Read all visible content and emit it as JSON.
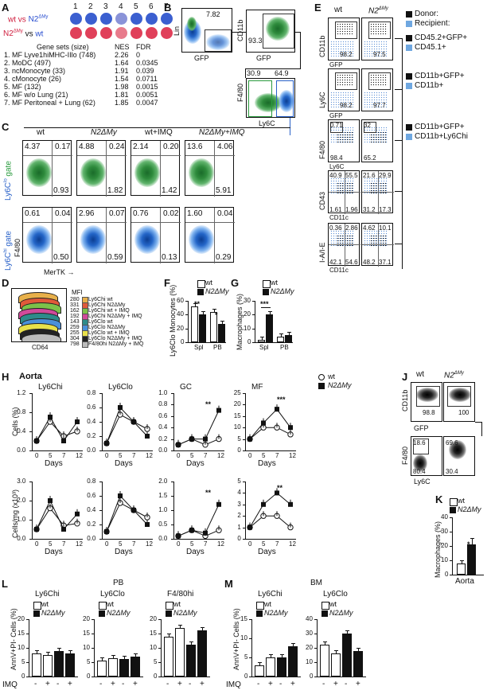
{
  "panel_letters": {
    "a": "A",
    "b": "B",
    "c": "C",
    "d": "D",
    "e": "E",
    "f": "F",
    "g": "G",
    "h": "H",
    "j": "J",
    "k": "K",
    "l": "L",
    "m": "M"
  },
  "panelA": {
    "col_numbers": [
      "1",
      "2",
      "3",
      "4",
      "5",
      "6",
      "7"
    ],
    "row1_label": "wt vs N2ΔMy",
    "row2_label": "N2ΔMy vs wt",
    "row1_colors": [
      "#3b5fd0",
      "#3b5fd0",
      "#3b5fd0",
      "#8a93d8",
      "#3b5fd0",
      "#3b5fd0",
      "#3b5fd0"
    ],
    "row2_colors": [
      "#e0405a",
      "#e0405a",
      "#e0405a",
      "#e87b8c",
      "#e0405a",
      "#e0405a",
      "#e0405a"
    ],
    "header": {
      "gene_sets": "Gene sets (size)",
      "nes": "NES",
      "fdr": "FDR"
    },
    "rows": [
      {
        "name": "1. MF Lyve1hiMHC-IIlo (748)",
        "nes": "2.26",
        "fdr": "0"
      },
      {
        "name": "2. MoDC (497)",
        "nes": "1.64",
        "fdr": "0.0345"
      },
      {
        "name": "3. ncMonocyte (33)",
        "nes": "1.91",
        "fdr": "0.039"
      },
      {
        "name": "4. cMonocyte (26)",
        "nes": "1.54",
        "fdr": "0.0711"
      },
      {
        "name": "5. MF (132)",
        "nes": "1.98",
        "fdr": "0.0015"
      },
      {
        "name": "6. MF w/o Lung (21)",
        "nes": "1.81",
        "fdr": "0.0051"
      },
      {
        "name": "7. MF Peritoneal + Lung (62)",
        "nes": "1.85",
        "fdr": "0.0047"
      }
    ]
  },
  "panelB": {
    "lin": "Lin",
    "gfp": "GFP",
    "cd11b": "CD11b",
    "f480": "F4/80",
    "ly6c": "Ly6C",
    "v1": "7.82",
    "v2": "93.3",
    "v3": "30.9",
    "v4": "64.9"
  },
  "panelC": {
    "cols": [
      "wt",
      "N2ΔMy",
      "wt+IMQ",
      "N2ΔMy+IMQ"
    ],
    "row1_label": "Ly6Clo gate",
    "row2_label": "Ly6Chi gate",
    "xlabel": "MerTK",
    "ylabel": "F4/80",
    "row1": [
      [
        "4.37",
        "0.17",
        "0.93"
      ],
      [
        "4.88",
        "0.24",
        "1.82"
      ],
      [
        "2.14",
        "0.20",
        "1.42"
      ],
      [
        "13.6",
        "4.06",
        "5.91"
      ]
    ],
    "row2": [
      [
        "0.61",
        "0.04",
        "0.50"
      ],
      [
        "2.96",
        "0.07",
        "0.59"
      ],
      [
        "0.76",
        "0.02",
        "0.13"
      ],
      [
        "1.60",
        "0.04",
        "0.29"
      ]
    ]
  },
  "panelD": {
    "mfi_header": "MFI",
    "xlabel": "CD64",
    "items": [
      {
        "mfi": "280",
        "label": "Ly6Chi wt",
        "color": "#e8b04a"
      },
      {
        "mfi": "331",
        "label": "Ly6Chi N2ΔMy",
        "color": "#e05a3a"
      },
      {
        "mfi": "162",
        "label": "Ly6Chi wt + IMQ",
        "color": "#7cc24a"
      },
      {
        "mfi": "192",
        "label": "Ly6Chi N2ΔMy + IMQ",
        "color": "#d04a9a"
      },
      {
        "mfi": "143",
        "label": "Ly6Clo wt",
        "color": "#2e8b8b"
      },
      {
        "mfi": "259",
        "label": "Ly6Clo N2ΔMy",
        "color": "#4a90d9"
      },
      {
        "mfi": "255",
        "label": "Ly6Clo wt + IMQ",
        "color": "#e8e04a"
      },
      {
        "mfi": "304",
        "label": "Ly6Clo N2ΔMy + IMQ",
        "color": "#222222"
      },
      {
        "mfi": "798",
        "label": "F4/80hi N2ΔMy + IMQ",
        "color": "#bbbbbb"
      }
    ]
  },
  "panelE": {
    "cols": [
      "wt",
      "N2ΔMy"
    ],
    "legend_top": [
      {
        "label": "Donor:",
        "color": "#111111"
      },
      {
        "label": "Recipient:",
        "color": "#6fa7e0"
      }
    ],
    "gates": [
      {
        "black": "CD45.2+GFP+",
        "blue": "CD45.1+"
      },
      {
        "black": "CD11b+GFP+",
        "blue": "CD11b+"
      },
      {
        "black": "CD11b+GFP+",
        "blue": "CD11b+Ly6Chi"
      }
    ],
    "row1": {
      "x": "GFP",
      "y": "CD11b",
      "wt": "98.2",
      "mut": "97.5"
    },
    "row2": {
      "x": "GFP",
      "y": "Ly6C",
      "wt": "98.2",
      "mut": "97.7"
    },
    "row3": {
      "x": "Ly6C",
      "y": "F4/80",
      "wt": [
        "0.71",
        "98.4"
      ],
      "mut": [
        "32",
        "65.2"
      ]
    },
    "row4": {
      "x": "CD11c",
      "y": "CD43",
      "wt": [
        "40.9",
        "55.5",
        "1.61",
        "1.96"
      ],
      "mut": [
        "21.6",
        "29.9",
        "31.2",
        "17.3"
      ]
    },
    "row5": {
      "x": "CD11c",
      "y": "I-A/I-E",
      "wt": [
        "0.36",
        "2.86",
        "42.1",
        "54.6"
      ],
      "mut": [
        "4.62",
        "10.1",
        "48.2",
        "37.1"
      ]
    }
  },
  "chart_data": [
    {
      "type": "bar",
      "title": "",
      "ylabel": "Ly6Clo Monocytes (%)",
      "categories": [
        "Spl",
        "PB"
      ],
      "ylim": [
        0,
        60
      ],
      "series": [
        {
          "name": "wt",
          "values": [
            52,
            44
          ]
        },
        {
          "name": "N2ΔMy",
          "values": [
            40,
            26
          ]
        }
      ],
      "annotations": [
        "**",
        "*"
      ]
    },
    {
      "type": "bar",
      "title": "",
      "ylabel": "Macrophages (%)",
      "categories": [
        "Spl",
        "PB"
      ],
      "ylim": [
        0,
        30
      ],
      "series": [
        {
          "name": "wt",
          "values": [
            2,
            4
          ]
        },
        {
          "name": "N2ΔMy",
          "values": [
            20,
            5
          ]
        }
      ],
      "annotations": [
        "***"
      ]
    },
    {
      "type": "line",
      "title": "Ly6Chi",
      "ylabel": "Cells (%)",
      "xlabel": "Days",
      "x": [
        0,
        5,
        7,
        12
      ],
      "ylim": [
        0,
        1.2
      ],
      "series": [
        {
          "name": "wt",
          "values": [
            0.2,
            0.6,
            0.3,
            0.4
          ]
        },
        {
          "name": "N2ΔMy",
          "values": [
            0.2,
            0.7,
            0.2,
            0.6
          ]
        }
      ]
    },
    {
      "type": "line",
      "title": "Ly6Clo",
      "ylabel": "",
      "xlabel": "Days",
      "x": [
        0,
        5,
        7,
        12
      ],
      "ylim": [
        0,
        0.8
      ],
      "series": [
        {
          "name": "wt",
          "values": [
            0.1,
            0.5,
            0.4,
            0.3
          ]
        },
        {
          "name": "N2ΔMy",
          "values": [
            0.1,
            0.6,
            0.4,
            0.2
          ]
        }
      ]
    },
    {
      "type": "line",
      "title": "GC",
      "ylabel": "",
      "xlabel": "Days",
      "x": [
        0,
        5,
        7,
        12
      ],
      "ylim": [
        0,
        1.0
      ],
      "series": [
        {
          "name": "wt",
          "values": [
            0.1,
            0.2,
            0.1,
            0.2
          ]
        },
        {
          "name": "N2ΔMy",
          "values": [
            0.1,
            0.2,
            0.2,
            0.7
          ]
        }
      ],
      "annotations": [
        "**"
      ]
    },
    {
      "type": "line",
      "title": "MF",
      "ylabel": "",
      "xlabel": "Days",
      "x": [
        0,
        5,
        7,
        12
      ],
      "ylim": [
        0,
        25
      ],
      "series": [
        {
          "name": "wt",
          "values": [
            5,
            10,
            10,
            7
          ]
        },
        {
          "name": "N2ΔMy",
          "values": [
            5,
            12,
            18,
            10
          ]
        }
      ],
      "annotations": [
        "***"
      ]
    },
    {
      "type": "line",
      "title": "",
      "ylabel": "Cells/mg (x10³)",
      "xlabel": "Days",
      "x": [
        0,
        5,
        7,
        12
      ],
      "ylim": [
        0,
        3.0
      ],
      "series": [
        {
          "name": "wt",
          "values": [
            0.5,
            1.6,
            0.7,
            0.8
          ]
        },
        {
          "name": "N2ΔMy",
          "values": [
            0.5,
            2.0,
            0.5,
            1.3
          ]
        }
      ]
    },
    {
      "type": "line",
      "title": "",
      "ylabel": "",
      "xlabel": "Days",
      "x": [
        0,
        5,
        7,
        12
      ],
      "ylim": [
        0,
        0.8
      ],
      "series": [
        {
          "name": "wt",
          "values": [
            0.1,
            0.5,
            0.4,
            0.3
          ]
        },
        {
          "name": "N2ΔMy",
          "values": [
            0.1,
            0.6,
            0.4,
            0.2
          ]
        }
      ]
    },
    {
      "type": "line",
      "title": "",
      "ylabel": "",
      "xlabel": "Days",
      "x": [
        0,
        5,
        7,
        12
      ],
      "ylim": [
        0,
        2.0
      ],
      "series": [
        {
          "name": "wt",
          "values": [
            0.1,
            0.3,
            0.1,
            0.3
          ]
        },
        {
          "name": "N2ΔMy",
          "values": [
            0.1,
            0.3,
            0.2,
            1.2
          ]
        }
      ],
      "annotations": [
        "**"
      ]
    },
    {
      "type": "line",
      "title": "",
      "ylabel": "",
      "xlabel": "Days",
      "x": [
        0,
        5,
        7,
        12
      ],
      "ylim": [
        0,
        5
      ],
      "series": [
        {
          "name": "wt",
          "values": [
            1,
            2,
            2,
            1
          ]
        },
        {
          "name": "N2ΔMy",
          "values": [
            1,
            3,
            4,
            3
          ]
        }
      ],
      "annotations": [
        "**"
      ]
    },
    {
      "type": "bar",
      "title": "Aorta",
      "ylabel": "Macrophages (%)",
      "categories": [
        "Aorta"
      ],
      "ylim": [
        0,
        40
      ],
      "series": [
        {
          "name": "wt",
          "values": [
            8
          ]
        },
        {
          "name": "N2ΔMy",
          "values": [
            21
          ]
        }
      ],
      "annotations": [
        "*"
      ]
    },
    {
      "type": "bar",
      "title": "PB",
      "ylabel": "AnnV+PI- Cells (%)",
      "categories": [
        "Ly6Chi",
        "Ly6Clo",
        "F4/80hi"
      ],
      "ylim": [
        0,
        20
      ],
      "groups": [
        "Ly6Chi",
        "Ly6Clo",
        "F4/80hi"
      ],
      "IMQ": [
        "-",
        "+",
        "-",
        "+"
      ],
      "series": [
        {
          "name": "wt",
          "values": [
            [
              8,
              7.5
            ],
            [
              5.5,
              6.5
            ],
            [
              14,
              17
            ]
          ]
        },
        {
          "name": "N2ΔMy",
          "values": [
            [
              9,
              8
            ],
            [
              6,
              7
            ],
            [
              11,
              16
            ]
          ]
        }
      ]
    },
    {
      "type": "bar",
      "title": "BM",
      "ylabel": "AnnV+PI- Cells (%)",
      "categories": [
        "Ly6Chi",
        "Ly6Clo"
      ],
      "ylim": [
        0,
        40
      ],
      "IMQ": [
        "-",
        "+",
        "-",
        "+"
      ],
      "series": [
        {
          "name": "wt",
          "values": [
            [
              3,
              5
            ],
            [
              22,
              16
            ]
          ]
        },
        {
          "name": "N2ΔMy",
          "values": [
            [
              5,
              8
            ],
            [
              30,
              18
            ]
          ]
        }
      ]
    }
  ],
  "panelF": {
    "ylabel": "Ly6Clo Monocytes (%)",
    "legend": [
      "wt",
      "N2ΔMy"
    ],
    "cats": [
      "Spl",
      "PB"
    ],
    "ticks": [
      "0",
      "20",
      "40",
      "60"
    ],
    "sig1": "**",
    "sig2": "*"
  },
  "panelG": {
    "ylabel": "Macrophages (%)",
    "legend": [
      "wt",
      "N2ΔMy"
    ],
    "cats": [
      "Spl",
      "PB"
    ],
    "ticks": [
      "0",
      "10",
      "20",
      "30"
    ],
    "sig": "***"
  },
  "panelH": {
    "title": "Aorta",
    "legend": [
      "wt",
      "N2ΔMy"
    ],
    "titles": [
      "Ly6Chi",
      "Ly6Clo",
      "GC",
      "MF"
    ],
    "ylabel_top": "Cells (%)",
    "ylabel_bot": "Cells/mg (x10³)",
    "xlabel": "Days",
    "xticks": [
      "0",
      "5",
      "7",
      "12"
    ],
    "yticks": [
      [
        "0.0",
        "0.4",
        "0.8",
        "1.2"
      ],
      [
        "0.0",
        "0.2",
        "0.4",
        "0.6",
        "0.8"
      ],
      [
        "0.0",
        "0.2",
        "0.4",
        "0.6",
        "0.8",
        "1.0"
      ],
      [
        "0",
        "5",
        "10",
        "15",
        "20",
        "25"
      ],
      [
        "0.0",
        "1.0",
        "2.0",
        "3.0"
      ],
      [
        "0.0",
        "0.2",
        "0.4",
        "0.6",
        "0.8"
      ],
      [
        "0.0",
        "0.5",
        "1.0",
        "1.5",
        "2.0"
      ],
      [
        "0",
        "1",
        "2",
        "3",
        "4",
        "5"
      ]
    ],
    "sig": [
      "",
      "",
      "**",
      "***",
      "",
      "",
      "**",
      "**"
    ]
  },
  "panelJ": {
    "cols": [
      "wt",
      "N2ΔMy"
    ],
    "gfp": "GFP",
    "cd11b": "CD11b",
    "f480": "F4/80",
    "ly6c": "Ly6C",
    "v_wt": "98.8",
    "v_mut": "100",
    "w1": "18.6",
    "w2": "80.4",
    "m1": "69.6",
    "m2": "30.4"
  },
  "panelK": {
    "ylabel": "Macrophages (%)",
    "legend": [
      "wt",
      "N2ΔMy"
    ],
    "cat": "Aorta",
    "ticks": [
      "0",
      "10",
      "20",
      "30",
      "40"
    ],
    "sig": "*"
  },
  "panelL": {
    "title": "PB",
    "groups": [
      "Ly6Chi",
      "Ly6Clo",
      "F4/80hi"
    ],
    "legend": [
      "wt",
      "N2ΔMy"
    ],
    "ylabel": "AnnV+PI- Cells (%)",
    "ticks": [
      "0",
      "5",
      "10",
      "15",
      "20"
    ],
    "imq": "IMQ",
    "signs": [
      "-",
      "+",
      "-",
      "+"
    ]
  },
  "panelM": {
    "title": "BM",
    "groups": [
      "Ly6Chi",
      "Ly6Clo"
    ],
    "legend": [
      "wt",
      "N2ΔMy"
    ],
    "ylabel": "AnnV+PI- Cells (%)",
    "ticks1": [
      "0",
      "5",
      "10",
      "15"
    ],
    "ticks2": [
      "0",
      "10",
      "20",
      "30",
      "40"
    ],
    "imq": "IMQ",
    "signs": [
      "-",
      "+",
      "-",
      "+"
    ]
  }
}
